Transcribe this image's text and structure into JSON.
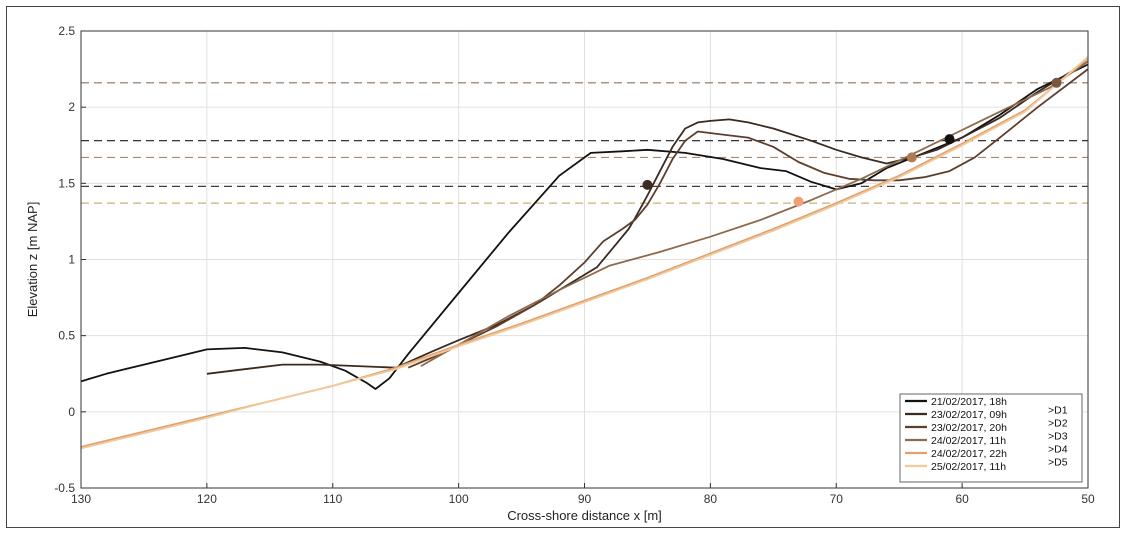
{
  "chart_data": {
    "type": "line",
    "title": "",
    "xlabel": "Cross-shore distance x [m]",
    "ylabel": "Elevation z [m NAP]",
    "xlim": [
      130,
      50
    ],
    "ylim": [
      -0.5,
      2.5
    ],
    "x_reversed": true,
    "x_ticks": [
      "130",
      "120",
      "110",
      "100",
      "90",
      "80",
      "70",
      "60",
      "50"
    ],
    "y_ticks": [
      "-0.5",
      "0",
      "0.5",
      "1",
      "1.5",
      "2",
      "2.5"
    ],
    "grid": true,
    "legend_position": "bottom-right",
    "series": [
      {
        "name": "21/02/2017, 18h",
        "color": "#121212",
        "x": [
          130,
          128,
          125,
          122,
          120,
          117,
          114,
          111,
          109,
          107.3,
          106.6,
          105.5,
          104,
          100,
          96,
          92,
          89.5,
          87,
          85,
          82,
          79,
          76,
          74,
          72,
          70,
          68,
          66,
          63,
          60,
          57,
          54,
          50
        ],
        "y": [
          0.2,
          0.25,
          0.31,
          0.37,
          0.41,
          0.42,
          0.39,
          0.33,
          0.27,
          0.19,
          0.15,
          0.22,
          0.38,
          0.78,
          1.18,
          1.55,
          1.7,
          1.71,
          1.72,
          1.7,
          1.66,
          1.6,
          1.58,
          1.51,
          1.46,
          1.5,
          1.6,
          1.7,
          1.8,
          1.95,
          2.12,
          2.28
        ]
      },
      {
        "name": "23/02/2017, 09h",
        "color": "#3b2a22",
        "x": [
          120,
          117,
          114,
          111,
          108,
          105,
          102,
          100,
          97,
          94,
          91,
          89,
          87.5,
          86.5,
          86,
          85,
          84,
          83,
          82,
          81,
          80,
          78.5,
          77,
          75,
          72,
          70,
          68,
          66,
          64,
          62,
          60,
          57,
          54,
          50
        ],
        "y": [
          0.25,
          0.28,
          0.31,
          0.31,
          0.3,
          0.29,
          0.4,
          0.47,
          0.57,
          0.7,
          0.85,
          0.95,
          1.1,
          1.2,
          1.27,
          1.42,
          1.58,
          1.74,
          1.86,
          1.9,
          1.91,
          1.92,
          1.9,
          1.86,
          1.78,
          1.72,
          1.67,
          1.63,
          1.67,
          1.72,
          1.8,
          1.93,
          2.1,
          2.3
        ]
      },
      {
        "name": "23/02/2017, 20h",
        "color": "#5e3e2c",
        "x": [
          104,
          102,
          100,
          97,
          94,
          92,
          90,
          88.5,
          87,
          86,
          85,
          84,
          83,
          82,
          81,
          79,
          77,
          75,
          73,
          71,
          69,
          67,
          65,
          63,
          61,
          59,
          57,
          54,
          50
        ],
        "y": [
          0.29,
          0.36,
          0.44,
          0.56,
          0.7,
          0.83,
          0.98,
          1.12,
          1.2,
          1.26,
          1.36,
          1.5,
          1.66,
          1.78,
          1.84,
          1.82,
          1.8,
          1.74,
          1.64,
          1.57,
          1.53,
          1.52,
          1.52,
          1.54,
          1.58,
          1.67,
          1.8,
          2.0,
          2.25
        ]
      },
      {
        "name": "24/02/2017, 11h",
        "color": "#8d6a4b",
        "x": [
          103,
          100,
          96,
          92,
          88,
          84,
          80,
          76,
          72,
          68,
          64,
          60,
          56,
          53,
          50
        ],
        "y": [
          0.3,
          0.44,
          0.63,
          0.8,
          0.96,
          1.05,
          1.15,
          1.26,
          1.39,
          1.53,
          1.69,
          1.85,
          2.01,
          2.13,
          2.3
        ]
      },
      {
        "name": "24/02/2017, 22h",
        "color": "#e0a16e",
        "x": [
          130,
          125,
          120,
          115,
          110,
          105,
          100,
          95,
          90,
          85,
          80,
          75,
          70,
          65,
          60,
          55,
          50
        ],
        "y": [
          -0.23,
          -0.13,
          -0.03,
          0.07,
          0.17,
          0.29,
          0.44,
          0.58,
          0.73,
          0.88,
          1.04,
          1.2,
          1.37,
          1.55,
          1.76,
          1.98,
          2.32
        ]
      },
      {
        "name": "25/02/2017, 11h",
        "color": "#f2c99a",
        "x": [
          130,
          125,
          120,
          115,
          110,
          105,
          100,
          95,
          90,
          85,
          80,
          75,
          70,
          65,
          60,
          55,
          50
        ],
        "y": [
          -0.24,
          -0.14,
          -0.04,
          0.07,
          0.17,
          0.28,
          0.43,
          0.57,
          0.72,
          0.87,
          1.03,
          1.19,
          1.36,
          1.54,
          1.75,
          1.97,
          2.33
        ]
      }
    ],
    "horizontal_lines": [
      {
        "y": 2.16,
        "color": "#8a7560",
        "style": "dashed"
      },
      {
        "y": 1.78,
        "color": "#1a1a1a",
        "style": "dashed"
      },
      {
        "y": 1.67,
        "color": "#a88a70",
        "style": "dashed"
      },
      {
        "y": 1.48,
        "color": "#4a3a30",
        "style": "dashed"
      },
      {
        "y": 1.37,
        "color": "#c9b07a",
        "style": "dashed"
      }
    ],
    "markers": [
      {
        "x": 85,
        "y": 1.49,
        "color": "#3e2a20"
      },
      {
        "x": 61,
        "y": 1.79,
        "color": "#111111"
      },
      {
        "x": 64,
        "y": 1.67,
        "color": "#b07a56"
      },
      {
        "x": 52.5,
        "y": 2.16,
        "color": "#7a5540"
      },
      {
        "x": 73,
        "y": 1.38,
        "color": "#f0a072"
      }
    ],
    "legend_brackets": [
      ">D1",
      ">D2",
      ">D3",
      ">D4",
      ">D5"
    ]
  }
}
